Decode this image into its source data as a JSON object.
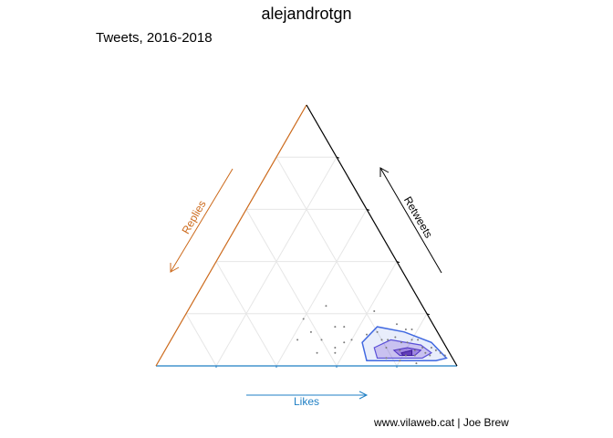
{
  "title": "alejandrotgn",
  "subtitle": "Tweets, 2016-2018",
  "caption": "www.vilaweb.cat | Joe Brew",
  "chart_data": {
    "type": "scatter",
    "subtype": "ternary",
    "axes": {
      "bottom": {
        "label": "Likes",
        "color": "#1f7fc4"
      },
      "left": {
        "label": "Replies",
        "color": "#cc6a1c"
      },
      "right": {
        "label": "Retweets",
        "color": "#000000"
      }
    },
    "grid": true,
    "density_contours": true,
    "colors": {
      "points": "#7a7a7a",
      "contour_outer": "#4169e1",
      "contour_fill": "#6a3fd0",
      "grid": "#e6e6e6"
    },
    "points": [
      {
        "likes": 0.45,
        "replies": 0.32,
        "retweets": 0.23
      },
      {
        "likes": 0.4,
        "replies": 0.42,
        "retweets": 0.18
      },
      {
        "likes": 0.52,
        "replies": 0.33,
        "retweets": 0.15
      },
      {
        "likes": 0.51,
        "replies": 0.44,
        "retweets": 0.05
      },
      {
        "likes": 0.5,
        "replies": 0.4,
        "retweets": 0.1
      },
      {
        "likes": 0.56,
        "replies": 0.37,
        "retweets": 0.07
      },
      {
        "likes": 0.55,
        "replies": 0.3,
        "retweets": 0.15
      },
      {
        "likes": 0.42,
        "replies": 0.48,
        "retweets": 0.1
      },
      {
        "likes": 0.6,
        "replies": 0.3,
        "retweets": 0.1
      },
      {
        "likes": 0.58,
        "replies": 0.33,
        "retweets": 0.09
      },
      {
        "likes": 0.57,
        "replies": 0.38,
        "retweets": 0.05
      },
      {
        "likes": 0.45,
        "replies": 0.42,
        "retweets": 0.13
      },
      {
        "likes": 0.64,
        "replies": 0.24,
        "retweets": 0.12
      },
      {
        "likes": 0.67,
        "replies": 0.2,
        "retweets": 0.13
      },
      {
        "likes": 0.72,
        "replies": 0.12,
        "retweets": 0.16
      },
      {
        "likes": 0.76,
        "replies": 0.1,
        "retweets": 0.14
      },
      {
        "likes": 0.78,
        "replies": 0.08,
        "retweets": 0.14
      },
      {
        "likes": 0.72,
        "replies": 0.18,
        "retweets": 0.1
      },
      {
        "likes": 0.74,
        "replies": 0.15,
        "retweets": 0.11
      },
      {
        "likes": 0.77,
        "replies": 0.14,
        "retweets": 0.09
      },
      {
        "likes": 0.7,
        "replies": 0.2,
        "retweets": 0.1
      },
      {
        "likes": 0.8,
        "replies": 0.1,
        "retweets": 0.1
      },
      {
        "likes": 0.73,
        "replies": 0.2,
        "retweets": 0.07
      },
      {
        "likes": 0.78,
        "replies": 0.16,
        "retweets": 0.06
      },
      {
        "likes": 0.81,
        "replies": 0.15,
        "retweets": 0.04
      },
      {
        "likes": 0.83,
        "replies": 0.11,
        "retweets": 0.06
      },
      {
        "likes": 0.85,
        "replies": 0.08,
        "retweets": 0.07
      },
      {
        "likes": 0.84,
        "replies": 0.12,
        "retweets": 0.04
      },
      {
        "likes": 0.87,
        "replies": 0.08,
        "retweets": 0.05
      },
      {
        "likes": 0.89,
        "replies": 0.07,
        "retweets": 0.04
      },
      {
        "likes": 0.9,
        "replies": 0.04,
        "retweets": 0.06
      },
      {
        "likes": 0.88,
        "replies": 0.05,
        "retweets": 0.07
      },
      {
        "likes": 0.86,
        "replies": 0.13,
        "retweets": 0.01
      },
      {
        "likes": 0.8,
        "replies": 0.18,
        "retweets": 0.02
      },
      {
        "likes": 0.79,
        "replies": 0.12,
        "retweets": 0.09
      },
      {
        "likes": 0.82,
        "replies": 0.08,
        "retweets": 0.1
      },
      {
        "likes": 0.92,
        "replies": 0.03,
        "retweets": 0.05
      },
      {
        "likes": 0.94,
        "replies": 0.02,
        "retweets": 0.04
      },
      {
        "likes": 0.75,
        "replies": 0.22,
        "retweets": 0.03
      },
      {
        "likes": 0.62,
        "replies": 0.17,
        "retweets": 0.21
      }
    ],
    "contours": [
      {
        "level": "outer",
        "vertices": [
          {
            "likes": 0.64,
            "replies": 0.27,
            "retweets": 0.09
          },
          {
            "likes": 0.66,
            "replies": 0.19,
            "retweets": 0.15
          },
          {
            "likes": 0.76,
            "replies": 0.11,
            "retweets": 0.13
          },
          {
            "likes": 0.87,
            "replies": 0.04,
            "retweets": 0.09
          },
          {
            "likes": 0.95,
            "replies": 0.02,
            "retweets": 0.03
          },
          {
            "likes": 0.92,
            "replies": 0.06,
            "retweets": 0.02
          },
          {
            "likes": 0.8,
            "replies": 0.18,
            "retweets": 0.02
          },
          {
            "likes": 0.69,
            "replies": 0.29,
            "retweets": 0.02
          }
        ]
      },
      {
        "level": "middle",
        "vertices": [
          {
            "likes": 0.69,
            "replies": 0.24,
            "retweets": 0.07
          },
          {
            "likes": 0.73,
            "replies": 0.17,
            "retweets": 0.1
          },
          {
            "likes": 0.84,
            "replies": 0.08,
            "retweets": 0.08
          },
          {
            "likes": 0.89,
            "replies": 0.06,
            "retweets": 0.05
          },
          {
            "likes": 0.87,
            "replies": 0.1,
            "retweets": 0.03
          },
          {
            "likes": 0.77,
            "replies": 0.2,
            "retweets": 0.03
          },
          {
            "likes": 0.72,
            "replies": 0.25,
            "retweets": 0.03
          }
        ]
      },
      {
        "level": "inner",
        "vertices": [
          {
            "likes": 0.76,
            "replies": 0.18,
            "retweets": 0.06
          },
          {
            "likes": 0.8,
            "replies": 0.13,
            "retweets": 0.07
          },
          {
            "likes": 0.85,
            "replies": 0.09,
            "retweets": 0.06
          },
          {
            "likes": 0.84,
            "replies": 0.12,
            "retweets": 0.04
          },
          {
            "likes": 0.79,
            "replies": 0.17,
            "retweets": 0.04
          }
        ]
      },
      {
        "level": "core",
        "vertices": [
          {
            "likes": 0.79,
            "replies": 0.16,
            "retweets": 0.05
          },
          {
            "likes": 0.82,
            "replies": 0.12,
            "retweets": 0.06
          },
          {
            "likes": 0.83,
            "replies": 0.13,
            "retweets": 0.04
          },
          {
            "likes": 0.8,
            "replies": 0.16,
            "retweets": 0.04
          }
        ]
      }
    ]
  }
}
